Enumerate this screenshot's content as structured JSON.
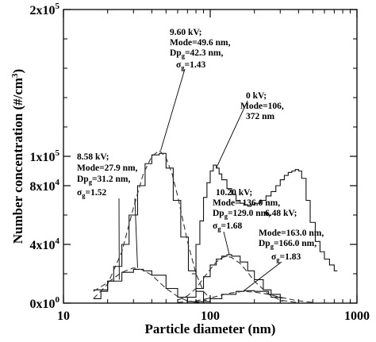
{
  "chart_data": {
    "type": "line",
    "title": "",
    "xlabel": "Particle diameter (nm)",
    "ylabel": "Number concentration (#/cm3)",
    "xscale": "log",
    "xlim": [
      10,
      1000
    ],
    "ylim": [
      0,
      200000
    ],
    "xticks": [
      {
        "value": 10,
        "label": "10"
      },
      {
        "value": 100,
        "label": "100"
      },
      {
        "value": 1000,
        "label": "1000"
      }
    ],
    "yticks": [
      {
        "value": 0,
        "base": "0x10",
        "exp": "0"
      },
      {
        "value": 40000,
        "base": "4x10",
        "exp": "4"
      },
      {
        "value": 80000,
        "base": "8x10",
        "exp": "4"
      },
      {
        "value": 100000,
        "base": "1x10",
        "exp": "5"
      },
      {
        "value": 200000,
        "base": "2x10",
        "exp": "5"
      }
    ],
    "grid": false,
    "series": [
      {
        "style": "measured-step",
        "x": [
          16,
          18,
          20,
          22,
          25,
          28,
          32,
          36,
          40,
          45,
          50,
          56,
          63,
          71,
          80,
          90
        ],
        "y": [
          3000,
          8000,
          15000,
          25000,
          40000,
          60000,
          80000,
          95000,
          101000,
          102000,
          92000,
          70000,
          45000,
          22000,
          8000,
          2000
        ]
      },
      {
        "style": "lognormal-fit",
        "x": [
          16,
          20,
          25,
          30,
          35,
          40,
          45,
          50,
          55,
          60,
          70,
          80,
          90,
          100
        ],
        "y": [
          3000,
          13000,
          35000,
          65000,
          88000,
          100000,
          104000,
          99000,
          88000,
          73000,
          42000,
          20000,
          8000,
          3000
        ]
      },
      {
        "style": "measured-step",
        "x": [
          16,
          20,
          25,
          30,
          35,
          40,
          50,
          60,
          70,
          80
        ],
        "y": [
          9000,
          15000,
          21000,
          23000,
          22000,
          19000,
          10000,
          4000,
          1000,
          500
        ]
      },
      {
        "style": "lognormal-fit",
        "x": [
          16,
          20,
          25,
          30,
          35,
          40,
          50,
          60,
          70,
          80
        ],
        "y": [
          8000,
          14000,
          21000,
          24000,
          22500,
          19000,
          10000,
          4500,
          1500,
          500
        ]
      },
      {
        "style": "measured-step",
        "x": [
          70,
          80,
          90,
          100,
          110,
          120,
          130,
          140,
          160,
          180,
          200,
          230,
          260,
          300
        ],
        "y": [
          4000,
          10000,
          18000,
          26000,
          30000,
          32000,
          33000,
          32000,
          28000,
          22000,
          16000,
          9000,
          4000,
          1500
        ]
      },
      {
        "style": "lognormal-fit",
        "x": [
          60,
          70,
          80,
          90,
          100,
          110,
          120,
          130,
          140,
          160,
          180,
          200,
          250,
          300,
          400
        ],
        "y": [
          2000,
          5000,
          10000,
          17000,
          23000,
          28000,
          31000,
          32000,
          31000,
          27000,
          21000,
          15000,
          6000,
          2000,
          300
        ]
      },
      {
        "style": "measured-step",
        "x": [
          80,
          100,
          120,
          150,
          170,
          200,
          250,
          300
        ],
        "y": [
          1000,
          3000,
          6000,
          8000,
          8500,
          8000,
          6000,
          3500
        ]
      },
      {
        "style": "lognormal-fit",
        "x": [
          60,
          80,
          100,
          120,
          140,
          166,
          200,
          250,
          300,
          400,
          500
        ],
        "y": [
          500,
          1500,
          3500,
          5500,
          7000,
          8000,
          7500,
          6000,
          4000,
          1500,
          500
        ]
      },
      {
        "style": "measured-step",
        "x": [
          75,
          80,
          85,
          90,
          95,
          100,
          105,
          110,
          115,
          120,
          130,
          140,
          150,
          160,
          170,
          180,
          190,
          200,
          220,
          240,
          260,
          280,
          300,
          320,
          340,
          360,
          380,
          400,
          420,
          450,
          480,
          520,
          560,
          600,
          650,
          700
        ],
        "y": [
          20000,
          40000,
          56000,
          72000,
          82000,
          90000,
          94000,
          92000,
          88000,
          84000,
          78000,
          74000,
          70000,
          68000,
          67000,
          66000,
          67000,
          68000,
          70000,
          73000,
          76000,
          80000,
          84000,
          87000,
          89000,
          90000,
          91000,
          90000,
          85000,
          70000,
          55000,
          42000,
          35000,
          30000,
          26000,
          22000
        ]
      }
    ],
    "annotations": [
      {
        "lines": [
          "9.60 kV;",
          "Mode=49.6 nm,",
          "Dpg=42.3 nm,",
          "σg=1.43"
        ]
      },
      {
        "lines": [
          "0 kV;",
          "Mode=106,",
          "372 nm"
        ]
      },
      {
        "lines": [
          "8.58 kV;",
          "Mode=27.9 nm,",
          "Dpg=31.2 nm,",
          "σg=1.52"
        ]
      },
      {
        "lines": [
          "10.20 kV;",
          "Mode= 136.0 nm,",
          "Dpg=129.0 nm,",
          "σg=1.68"
        ]
      },
      {
        "lines": [
          "6.48 kV;",
          "Mode=163.0 nm,",
          "Dpg=166.0 nm,",
          "σg=1.83"
        ]
      }
    ]
  }
}
